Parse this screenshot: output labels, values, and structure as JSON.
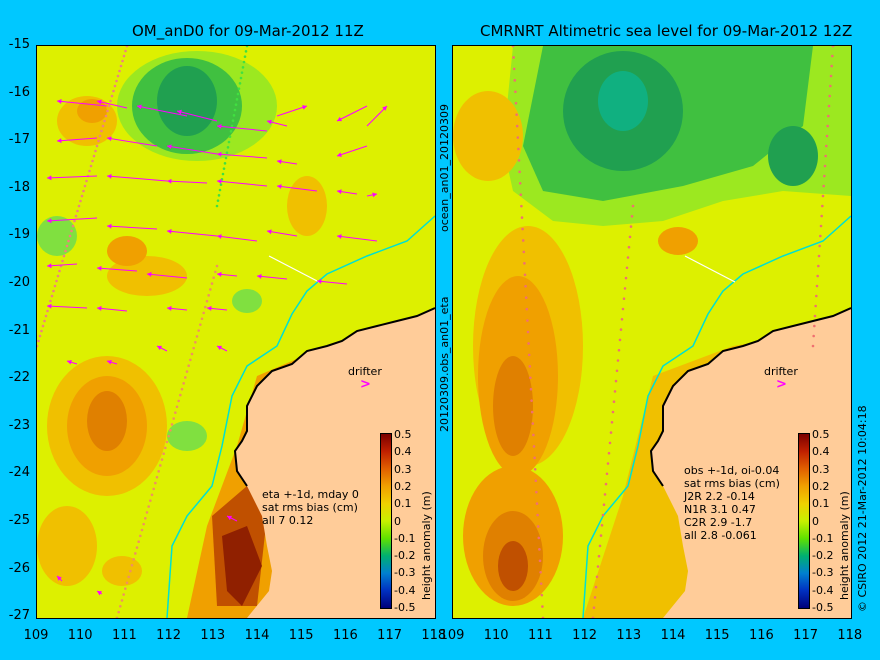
{
  "left": {
    "title": "OM_anD0 for 09-Mar-2012 11Z",
    "notes": [
      "eta +-1d, mday 0",
      "sat rms bias (cm)",
      "all 7 0.12"
    ]
  },
  "right": {
    "title": "CMRNRT Altimetric sea level  for 09-Mar-2012 12Z",
    "notes": [
      "obs +-1d, oi-0.04",
      "sat rms bias (cm)",
      "J2R   2.2 -0.14",
      "N1R   3.1 0.47",
      "C2R   2.9 -1.7",
      "all 2.8 -0.061"
    ]
  },
  "y_ticks": [
    "-15",
    "-16",
    "-17",
    "-18",
    "-19",
    "-20",
    "-21",
    "-22",
    "-23",
    "-24",
    "-25",
    "-26",
    "-27"
  ],
  "x_ticks": [
    "109",
    "110",
    "111",
    "112",
    "113",
    "114",
    "115",
    "116",
    "117",
    "118"
  ],
  "colorbar": {
    "label": "height anomaly (m)",
    "ticks": [
      "0.5",
      "0.4",
      "0.3",
      "0.2",
      "0.1",
      "0",
      "-0.1",
      "-0.2",
      "-0.3",
      "-0.4",
      "-0.5"
    ]
  },
  "drifter_label": "drifter",
  "drifter_arrow": ">",
  "vertical_text": {
    "top": "ocean_an01_20120309",
    "bottom": "20120309.obs_an01_eta",
    "credit": "© CSIRO 2012   21-Mar-2012 10:04:18"
  },
  "colors": {
    "background": "#00c8ff",
    "land": "#ffcc99",
    "vector": "#ff00ff",
    "coast_line": "#00ffff"
  }
}
